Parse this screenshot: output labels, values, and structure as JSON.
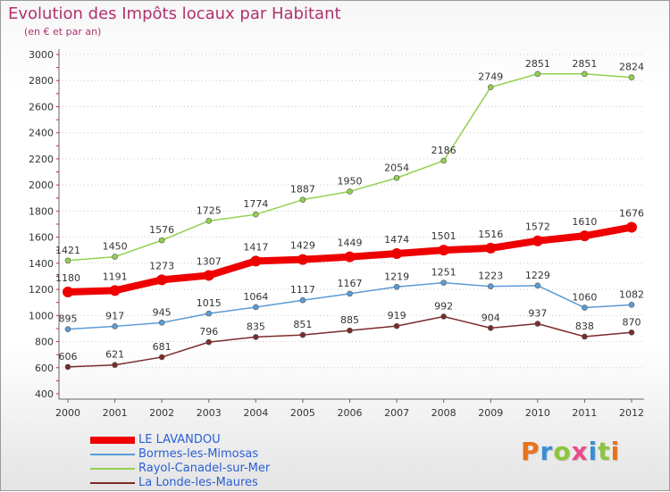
{
  "title": "Evolution des Impôts locaux par Habitant",
  "subtitle": "(en € et par an)",
  "brand": {
    "text": "Proxiti",
    "letter_colors": [
      "#e8731c",
      "#3a8fd4",
      "#8bc53f",
      "#e94b8a",
      "#3a8fd4",
      "#8bc53f",
      "#e8731c"
    ]
  },
  "chart_data": {
    "type": "line",
    "title": "Evolution des Impôts locaux par Habitant",
    "subtitle": "(en € et par an)",
    "xlabel": "",
    "ylabel": "",
    "x": [
      "2000",
      "2001",
      "2002",
      "2003",
      "2004",
      "2005",
      "2006",
      "2007",
      "2008",
      "2009",
      "2010",
      "2011",
      "2012"
    ],
    "yticks": [
      "400",
      "600",
      "800",
      "1000",
      "1200",
      "1400",
      "1600",
      "1800",
      "2000",
      "2200",
      "2400",
      "2600",
      "2800",
      "3000"
    ],
    "ylim": [
      400,
      3000
    ],
    "grid": "horizontal dotted",
    "legend_position": "bottom-left",
    "series": [
      {
        "name": "LE LAVANDOU",
        "color": "#ee0000",
        "emphasis": true,
        "values": [
          1180,
          1191,
          1273,
          1307,
          1417,
          1429,
          1449,
          1474,
          1501,
          1516,
          1572,
          1610,
          1676
        ]
      },
      {
        "name": "Bormes-les-Mimosas",
        "color": "#5b9bd5",
        "values": [
          895,
          917,
          945,
          1015,
          1064,
          1117,
          1167,
          1219,
          1251,
          1223,
          1229,
          1060,
          1082
        ]
      },
      {
        "name": "Rayol-Canadel-sur-Mer",
        "color": "#92d050",
        "values": [
          1421,
          1450,
          1576,
          1725,
          1774,
          1887,
          1950,
          2054,
          2186,
          2749,
          2851,
          2851,
          2824
        ]
      },
      {
        "name": "La Londe-les-Maures",
        "color": "#7b2b2b",
        "values": [
          606,
          621,
          681,
          796,
          835,
          851,
          885,
          919,
          992,
          904,
          937,
          838,
          870
        ]
      }
    ]
  }
}
